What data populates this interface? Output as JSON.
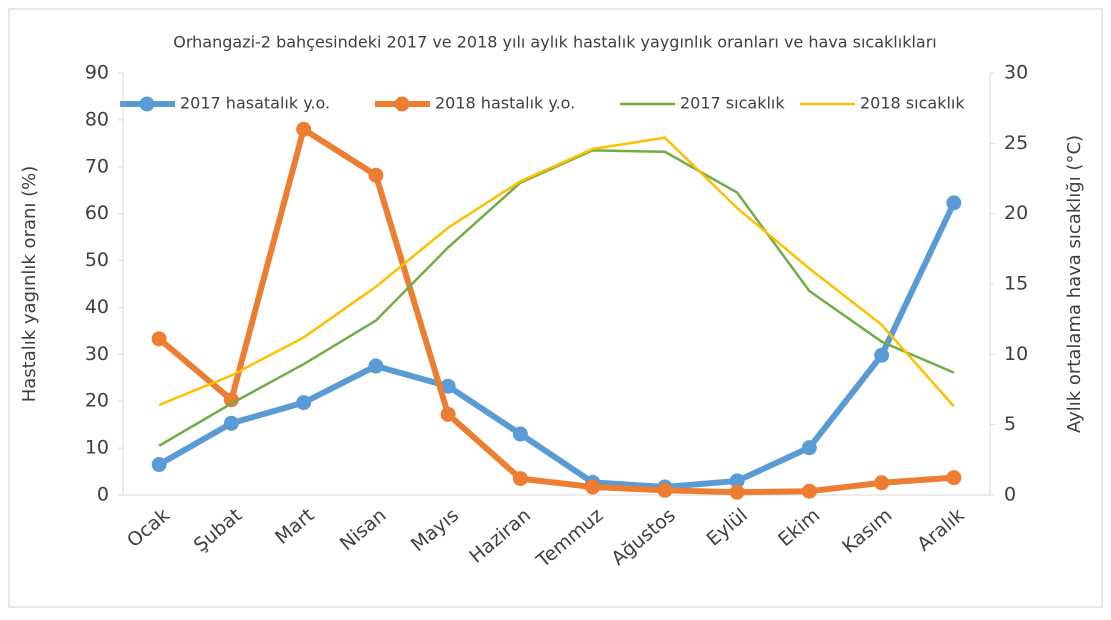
{
  "chart_data": {
    "type": "line",
    "title": "Orhangazi-2 bahçesindeki 2017 ve 2018 yılı aylık hastalık yaygınlık oranları ve hava sıcaklıkları",
    "y_label": "Hastalık yagınlık oranı (%)",
    "y2_label": "Aylık ortalama hava sıcaklığı (°C)",
    "categories": [
      "Ocak",
      "Şubat",
      "Mart",
      "Nisan",
      "Mayıs",
      "Haziran",
      "Temmuz",
      "Ağustos",
      "Eylül",
      "Ekim",
      "Kasım",
      "Aralık"
    ],
    "ylim": [
      0,
      90
    ],
    "yticks": [
      0,
      10,
      20,
      30,
      40,
      50,
      60,
      70,
      80,
      90
    ],
    "y2lim": [
      0,
      30
    ],
    "y2ticks": [
      0,
      5,
      10,
      15,
      20,
      25,
      30
    ],
    "legend": "top",
    "series": [
      {
        "name": "2017 hasatalık y.o.",
        "color": "#5b9bd5",
        "marker": true,
        "values": [
          6.5,
          15.3,
          19.7,
          27.5,
          23.2,
          13,
          2.7,
          1.7,
          3,
          10.1,
          29.8,
          62.3
        ]
      },
      {
        "name": "2018 hastalık y.o.",
        "color": "#ed7d31",
        "marker": true,
        "values": [
          33.3,
          20.3,
          78,
          68.2,
          17.2,
          3.5,
          1.7,
          1,
          0.6,
          0.8,
          2.6,
          3.7
        ]
      },
      {
        "name": "2017 sıcaklık",
        "color": "#70ad47",
        "marker": false,
        "axis": "y2",
        "values": [
          3.5,
          6.5,
          9.3,
          12.4,
          17.6,
          22.2,
          24.5,
          24.4,
          21.5,
          14.5,
          10.9,
          8.7
        ]
      },
      {
        "name": "2018 sıcaklık",
        "color": "#ffc000",
        "marker": false,
        "axis": "y2",
        "values": [
          6.4,
          8.5,
          11.2,
          14.8,
          19,
          22.3,
          24.6,
          25.4,
          20.4,
          16.1,
          12.1,
          6.3
        ]
      }
    ]
  }
}
